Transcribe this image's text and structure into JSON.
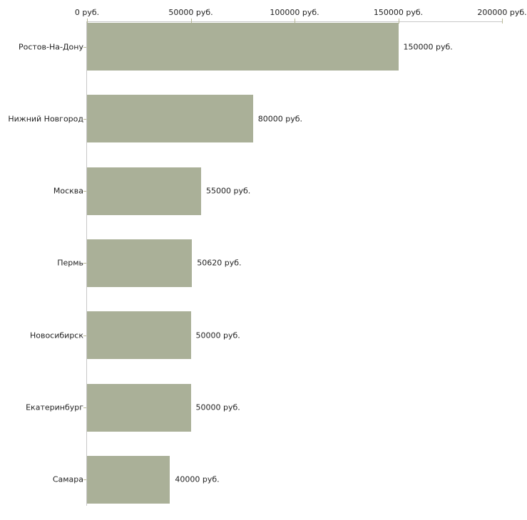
{
  "chart_data": {
    "type": "bar",
    "orientation": "horizontal",
    "title": "",
    "xlabel": "",
    "ylabel": "",
    "categories": [
      "Ростов-На-Дону",
      "Нижний Новгород",
      "Москва",
      "Пермь",
      "Новосибирск",
      "Екатеринбург",
      "Самара"
    ],
    "values": [
      150000,
      80000,
      55000,
      50620,
      50000,
      50000,
      40000
    ],
    "value_labels": [
      "150000 руб.",
      "80000 руб.",
      "55000 руб.",
      "50620 руб.",
      "50000 руб.",
      "50000 руб.",
      "40000 руб."
    ],
    "x_ticks": [
      0,
      50000,
      100000,
      150000,
      200000
    ],
    "x_tick_labels": [
      "0 руб.",
      "50000 руб.",
      "100000 руб.",
      "150000 руб.",
      "200000 руб."
    ],
    "xlim": [
      0,
      200000
    ],
    "axis_position": "top",
    "grid": false,
    "legend": false,
    "colors": {
      "bar": "#aab098",
      "axis_line": "#c8c8c8",
      "tick": "#b8b896",
      "text": "#222222",
      "background": "#ffffff"
    }
  }
}
